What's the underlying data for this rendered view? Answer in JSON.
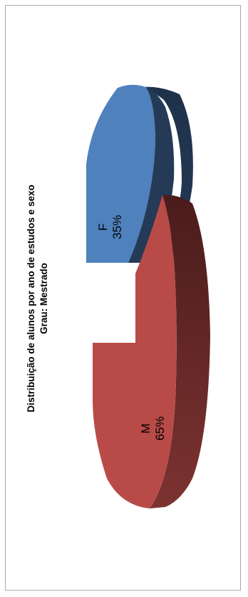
{
  "chart_data": {
    "type": "pie",
    "title": "Distribuição de alunos por ano de estudos e sexo",
    "subtitle": "Grau: Mestrado",
    "categories": [
      "F",
      "M"
    ],
    "values": [
      35,
      65
    ],
    "value_labels": [
      "35%",
      "65%"
    ],
    "colors": {
      "F": "#4f81bd",
      "M": "#c0504d"
    },
    "exploded": true,
    "three_d": true,
    "orientation": "rotated-90"
  }
}
